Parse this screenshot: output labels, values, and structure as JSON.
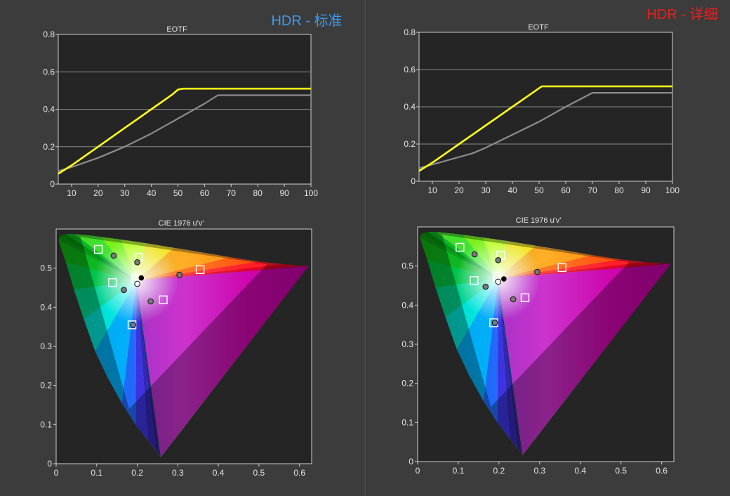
{
  "panels": [
    {
      "header": "HDR - 标准",
      "header_color": "#3a9bf2",
      "eotf": {
        "title": "EOTF",
        "xlim": [
          5,
          100
        ],
        "ylim": [
          0,
          0.8
        ],
        "xticks": [
          10,
          20,
          30,
          40,
          50,
          60,
          70,
          80,
          90,
          100
        ],
        "yticks": [
          "0",
          "0.2",
          "0.4",
          "0.6",
          "0.8"
        ],
        "ytick_values": [
          0,
          0.2,
          0.4,
          0.6,
          0.8
        ]
      },
      "cie": {
        "title": "CIE 1976 u'v'",
        "xticks": [
          "0",
          "0.1",
          "0.2",
          "0.3",
          "0.4",
          "0.5",
          "0.6"
        ],
        "xtick_values": [
          0,
          0.1,
          0.2,
          0.3,
          0.4,
          0.5,
          0.6
        ],
        "yticks": [
          "0",
          "0.1",
          "0.2",
          "0.3",
          "0.4",
          "0.5"
        ],
        "ytick_values": [
          0,
          0.1,
          0.2,
          0.3,
          0.4,
          0.5
        ]
      }
    },
    {
      "header": "HDR - 详细",
      "header_color": "#e8201f",
      "eotf": {
        "title": "EOTF",
        "xlim": [
          5,
          100
        ],
        "ylim": [
          0,
          0.8
        ],
        "xticks": [
          10,
          20,
          30,
          40,
          50,
          60,
          70,
          80,
          90,
          100
        ],
        "yticks": [
          "0",
          "0.2",
          "0.4",
          "0.6",
          "0.8"
        ],
        "ytick_values": [
          0,
          0.2,
          0.4,
          0.6,
          0.8
        ]
      },
      "cie": {
        "title": "CIE 1976 u'v'",
        "xticks": [
          "0",
          "0.1",
          "0.2",
          "0.3",
          "0.4",
          "0.5",
          "0.6"
        ],
        "xtick_values": [
          0,
          0.1,
          0.2,
          0.3,
          0.4,
          0.5,
          0.6
        ],
        "yticks": [
          "0",
          "0.1",
          "0.2",
          "0.3",
          "0.4",
          "0.5"
        ],
        "ytick_values": [
          0,
          0.1,
          0.2,
          0.3,
          0.4,
          0.5
        ]
      }
    }
  ],
  "colors": {
    "background": "#3c3c3c",
    "plot_background": "#252525",
    "measured_line": "#ffff1a",
    "target_line": "#8c8c8c",
    "target_marker": "#ffffff",
    "measured_marker": "#7a7a7a",
    "white_point_measured": "#000000",
    "white_point_target": "#ffffff"
  },
  "chart_data": [
    {
      "type": "line",
      "title": "EOTF",
      "xlim": [
        5,
        100
      ],
      "ylim": [
        0,
        0.8
      ],
      "series": [
        {
          "role": "measured",
          "x": [
            5,
            10,
            15,
            20,
            25,
            30,
            35,
            40,
            45,
            48,
            50,
            52,
            60,
            70,
            80,
            90,
            100
          ],
          "y": [
            0.055,
            0.1,
            0.15,
            0.2,
            0.25,
            0.3,
            0.35,
            0.4,
            0.45,
            0.48,
            0.505,
            0.51,
            0.51,
            0.51,
            0.51,
            0.51,
            0.51
          ]
        },
        {
          "role": "target",
          "x": [
            5,
            10,
            20,
            30,
            40,
            50,
            60,
            65,
            70,
            80,
            90,
            100
          ],
          "y": [
            0.07,
            0.09,
            0.14,
            0.2,
            0.27,
            0.35,
            0.43,
            0.475,
            0.475,
            0.475,
            0.475,
            0.475
          ]
        }
      ]
    },
    {
      "type": "line",
      "title": "EOTF",
      "xlim": [
        5,
        100
      ],
      "ylim": [
        0,
        0.8
      ],
      "series": [
        {
          "role": "measured",
          "x": [
            5,
            10,
            15,
            20,
            25,
            30,
            35,
            40,
            45,
            49,
            51,
            60,
            70,
            80,
            90,
            100
          ],
          "y": [
            0.055,
            0.1,
            0.15,
            0.2,
            0.25,
            0.3,
            0.35,
            0.4,
            0.45,
            0.49,
            0.51,
            0.51,
            0.51,
            0.51,
            0.51,
            0.51
          ]
        },
        {
          "role": "target",
          "x": [
            5,
            10,
            20,
            25,
            30,
            40,
            50,
            60,
            70,
            80,
            90,
            100
          ],
          "y": [
            0.07,
            0.09,
            0.13,
            0.15,
            0.18,
            0.25,
            0.32,
            0.4,
            0.475,
            0.475,
            0.475,
            0.475
          ]
        }
      ]
    },
    {
      "type": "scatter",
      "title": "CIE 1976 u'v'",
      "xlim": [
        0,
        0.63
      ],
      "ylim": [
        0,
        0.6
      ],
      "targets": [
        [
          0.104,
          0.548
        ],
        [
          0.204,
          0.528
        ],
        [
          0.355,
          0.496
        ],
        [
          0.139,
          0.463
        ],
        [
          0.264,
          0.419
        ],
        [
          0.187,
          0.355
        ],
        [
          0.198,
          0.473
        ]
      ],
      "measured": [
        [
          0.142,
          0.532
        ],
        [
          0.2,
          0.515
        ],
        [
          0.304,
          0.483
        ],
        [
          0.167,
          0.444
        ],
        [
          0.233,
          0.415
        ],
        [
          0.19,
          0.355
        ]
      ],
      "white_measured": [
        0.21,
        0.475
      ],
      "white_target": [
        0.2,
        0.46
      ],
      "gamut_triangle": [
        [
          0.52,
          0.51
        ],
        [
          0.06,
          0.58
        ],
        [
          0.18,
          0.14
        ]
      ]
    },
    {
      "type": "scatter",
      "title": "CIE 1976 u'v'",
      "xlim": [
        0,
        0.63
      ],
      "ylim": [
        0,
        0.6
      ],
      "targets": [
        [
          0.104,
          0.548
        ],
        [
          0.204,
          0.528
        ],
        [
          0.355,
          0.496
        ],
        [
          0.139,
          0.463
        ],
        [
          0.264,
          0.419
        ],
        [
          0.187,
          0.355
        ],
        [
          0.198,
          0.473
        ]
      ],
      "measured": [
        [
          0.14,
          0.53
        ],
        [
          0.198,
          0.515
        ],
        [
          0.294,
          0.485
        ],
        [
          0.167,
          0.447
        ],
        [
          0.235,
          0.415
        ],
        [
          0.19,
          0.355
        ]
      ],
      "white_measured": [
        0.212,
        0.467
      ],
      "white_target": [
        0.198,
        0.46
      ],
      "gamut_triangle": [
        [
          0.52,
          0.51
        ],
        [
          0.06,
          0.58
        ],
        [
          0.18,
          0.14
        ]
      ]
    }
  ]
}
